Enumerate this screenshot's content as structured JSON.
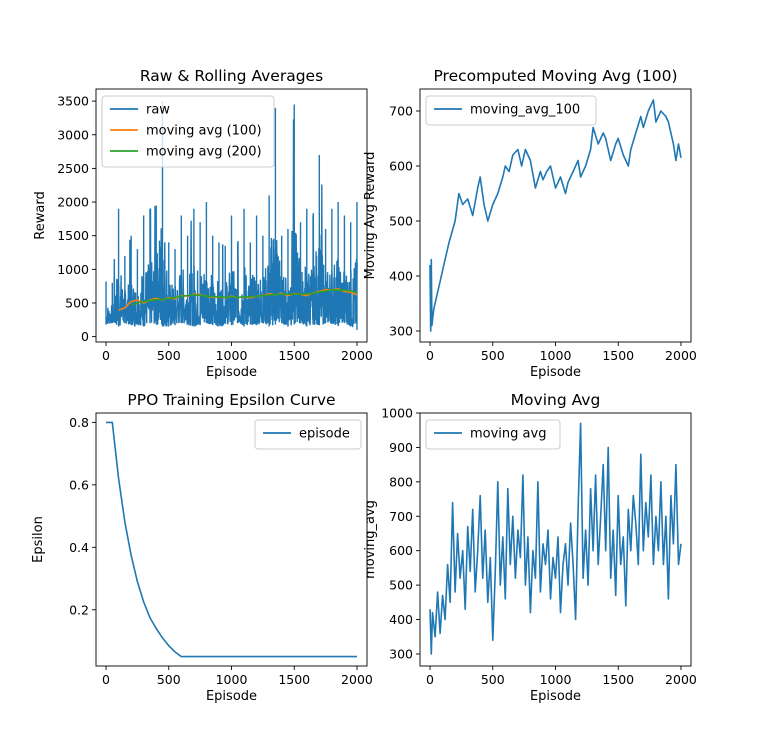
{
  "chart_data": [
    {
      "type": "line",
      "title": "Raw & Rolling Averages",
      "xlabel": "Episode",
      "ylabel": "Reward",
      "xlim": [
        -80,
        2080
      ],
      "ylim": [
        -80,
        3680
      ],
      "xticks": [
        0,
        500,
        1000,
        1500,
        2000
      ],
      "yticks": [
        0,
        500,
        1000,
        1500,
        2000,
        2500,
        3000,
        3500
      ],
      "legend_position": "top-left",
      "series": [
        {
          "name": "raw",
          "color": "#1f77b4",
          "x": [
            0,
            50,
            100,
            150,
            200,
            250,
            300,
            350,
            400,
            450,
            500,
            550,
            600,
            650,
            700,
            750,
            800,
            850,
            900,
            950,
            1000,
            1050,
            1100,
            1150,
            1200,
            1250,
            1300,
            1350,
            1400,
            1450,
            1500,
            1550,
            1600,
            1650,
            1700,
            1750,
            1800,
            1850,
            1900,
            1950,
            2000
          ],
          "upper": [
            820,
            800,
            1900,
            1200,
            1500,
            1300,
            1800,
            1900,
            1950,
            3500,
            1400,
            1300,
            1800,
            1500,
            1900,
            1700,
            2000,
            1500,
            1400,
            1350,
            1800,
            1400,
            1900,
            1400,
            1800,
            1500,
            2100,
            3400,
            1500,
            1600,
            3450,
            1700,
            1900,
            1800,
            2700,
            1600,
            1900,
            2000,
            1800,
            1700,
            2000
          ],
          "lower": [
            180,
            200,
            150,
            200,
            170,
            180,
            150,
            200,
            180,
            150,
            150,
            170,
            200,
            180,
            150,
            170,
            200,
            170,
            150,
            190,
            170,
            200,
            150,
            180,
            170,
            200,
            150,
            180,
            200,
            150,
            180,
            200,
            150,
            180,
            170,
            200,
            190,
            160,
            200,
            150,
            100
          ]
        },
        {
          "name": "moving avg (100)",
          "color": "#ff7f0e",
          "x": [
            100,
            150,
            200,
            250,
            300,
            350,
            400,
            450,
            500,
            550,
            600,
            650,
            700,
            750,
            800,
            850,
            900,
            950,
            1000,
            1050,
            1100,
            1150,
            1200,
            1250,
            1300,
            1350,
            1400,
            1450,
            1500,
            1550,
            1600,
            1650,
            1700,
            1750,
            1800,
            1850,
            1900,
            1950,
            2000
          ],
          "values": [
            390,
            430,
            520,
            545,
            500,
            545,
            570,
            545,
            580,
            560,
            610,
            600,
            630,
            625,
            600,
            585,
            590,
            575,
            600,
            580,
            590,
            575,
            600,
            610,
            640,
            620,
            645,
            610,
            640,
            630,
            610,
            650,
            670,
            700,
            690,
            710,
            670,
            660,
            620
          ]
        },
        {
          "name": "moving avg (200)",
          "color": "#2ca02c",
          "x": [
            200,
            250,
            300,
            350,
            400,
            450,
            500,
            550,
            600,
            650,
            700,
            750,
            800,
            850,
            900,
            950,
            1000,
            1050,
            1100,
            1150,
            1200,
            1250,
            1300,
            1350,
            1400,
            1450,
            1500,
            1550,
            1600,
            1650,
            1700,
            1750,
            1800,
            1850,
            1900,
            1950,
            2000
          ],
          "values": [
            470,
            500,
            520,
            535,
            550,
            555,
            565,
            580,
            600,
            610,
            620,
            615,
            600,
            595,
            590,
            585,
            590,
            585,
            590,
            590,
            600,
            610,
            620,
            625,
            630,
            630,
            630,
            635,
            635,
            645,
            660,
            680,
            690,
            695,
            690,
            680,
            650
          ]
        }
      ]
    },
    {
      "type": "line",
      "title": "Precomputed Moving Avg (100)",
      "xlabel": "Episode",
      "ylabel": "Moving Avg Reward",
      "xlim": [
        -80,
        2080
      ],
      "ylim": [
        280,
        740
      ],
      "xticks": [
        0,
        500,
        1000,
        1500,
        2000
      ],
      "yticks": [
        300,
        400,
        500,
        600,
        700
      ],
      "legend_position": "top-left",
      "series": [
        {
          "name": "moving_avg_100",
          "color": "#1f77b4",
          "x": [
            0,
            5,
            10,
            15,
            20,
            30,
            50,
            80,
            110,
            150,
            200,
            230,
            260,
            300,
            340,
            380,
            400,
            430,
            460,
            500,
            540,
            580,
            600,
            630,
            660,
            700,
            730,
            760,
            800,
            840,
            880,
            900,
            930,
            960,
            1000,
            1040,
            1080,
            1100,
            1140,
            1180,
            1200,
            1240,
            1280,
            1300,
            1340,
            1380,
            1400,
            1440,
            1480,
            1500,
            1540,
            1580,
            1600,
            1640,
            1680,
            1700,
            1740,
            1780,
            1800,
            1840,
            1880,
            1900,
            1940,
            1960,
            1980,
            2000
          ],
          "values": [
            420,
            300,
            430,
            310,
            320,
            340,
            360,
            390,
            420,
            460,
            500,
            550,
            530,
            540,
            510,
            560,
            580,
            530,
            500,
            530,
            550,
            580,
            600,
            590,
            620,
            630,
            600,
            630,
            610,
            560,
            590,
            575,
            590,
            600,
            560,
            580,
            550,
            570,
            590,
            610,
            580,
            600,
            630,
            670,
            640,
            660,
            650,
            610,
            640,
            650,
            620,
            600,
            630,
            660,
            690,
            670,
            700,
            720,
            680,
            700,
            690,
            680,
            640,
            610,
            640,
            615
          ]
        }
      ]
    },
    {
      "type": "line",
      "title": "PPO Training Epsilon Curve",
      "xlabel": "Episode",
      "ylabel": "Epsilon",
      "xlim": [
        -80,
        2080
      ],
      "ylim": [
        0.02,
        0.83
      ],
      "xticks": [
        0,
        500,
        1000,
        1500,
        2000
      ],
      "yticks": [
        0.2,
        0.4,
        0.6,
        0.8
      ],
      "ytick_labels": [
        "0.2",
        "0.4",
        "0.6",
        "0.8"
      ],
      "legend_position": "top-right",
      "series": [
        {
          "name": "episode",
          "color": "#1f77b4",
          "x": [
            0,
            50,
            100,
            150,
            200,
            250,
            300,
            350,
            400,
            450,
            500,
            550,
            600,
            650,
            1000,
            1500,
            2000
          ],
          "values": [
            0.8,
            0.8,
            0.62,
            0.48,
            0.375,
            0.29,
            0.225,
            0.175,
            0.14,
            0.11,
            0.085,
            0.065,
            0.05,
            0.05,
            0.05,
            0.05,
            0.05
          ]
        }
      ]
    },
    {
      "type": "line",
      "title": "Moving Avg",
      "xlabel": "Episode",
      "ylabel": "moving_avg",
      "xlim": [
        -80,
        2080
      ],
      "ylim": [
        265,
        1000
      ],
      "xticks": [
        0,
        500,
        1000,
        1500,
        2000
      ],
      "yticks": [
        300,
        400,
        500,
        600,
        700,
        800,
        900,
        1000
      ],
      "legend_position": "top-left",
      "series": [
        {
          "name": "moving avg",
          "color": "#1f77b4",
          "x": [
            0,
            10,
            20,
            40,
            60,
            80,
            100,
            120,
            140,
            160,
            180,
            200,
            220,
            240,
            260,
            280,
            300,
            320,
            340,
            360,
            380,
            400,
            420,
            440,
            460,
            480,
            500,
            520,
            540,
            560,
            580,
            600,
            620,
            640,
            660,
            680,
            700,
            720,
            740,
            760,
            780,
            800,
            820,
            840,
            860,
            880,
            900,
            920,
            940,
            960,
            980,
            1000,
            1020,
            1040,
            1060,
            1080,
            1100,
            1120,
            1140,
            1160,
            1180,
            1200,
            1220,
            1240,
            1260,
            1280,
            1300,
            1320,
            1340,
            1360,
            1380,
            1400,
            1420,
            1440,
            1460,
            1480,
            1500,
            1520,
            1540,
            1560,
            1580,
            1600,
            1620,
            1640,
            1660,
            1680,
            1700,
            1720,
            1740,
            1760,
            1780,
            1800,
            1820,
            1840,
            1860,
            1880,
            1900,
            1920,
            1940,
            1960,
            1980,
            2000
          ],
          "values": [
            430,
            300,
            420,
            350,
            480,
            360,
            470,
            400,
            560,
            450,
            740,
            480,
            650,
            520,
            600,
            430,
            670,
            540,
            720,
            480,
            600,
            760,
            520,
            660,
            450,
            580,
            340,
            540,
            800,
            500,
            640,
            460,
            780,
            560,
            700,
            520,
            660,
            580,
            820,
            500,
            640,
            420,
            600,
            520,
            800,
            480,
            620,
            560,
            660,
            460,
            580,
            520,
            640,
            420,
            560,
            620,
            500,
            680,
            560,
            400,
            720,
            970,
            520,
            660,
            500,
            780,
            600,
            820,
            560,
            700,
            850,
            600,
            900,
            520,
            660,
            470,
            760,
            560,
            640,
            440,
            720,
            600,
            760,
            680,
            560,
            880,
            600,
            740,
            640,
            820,
            560,
            700,
            600,
            800,
            560,
            700,
            460,
            760,
            620,
            850,
            560,
            620
          ]
        }
      ]
    }
  ]
}
